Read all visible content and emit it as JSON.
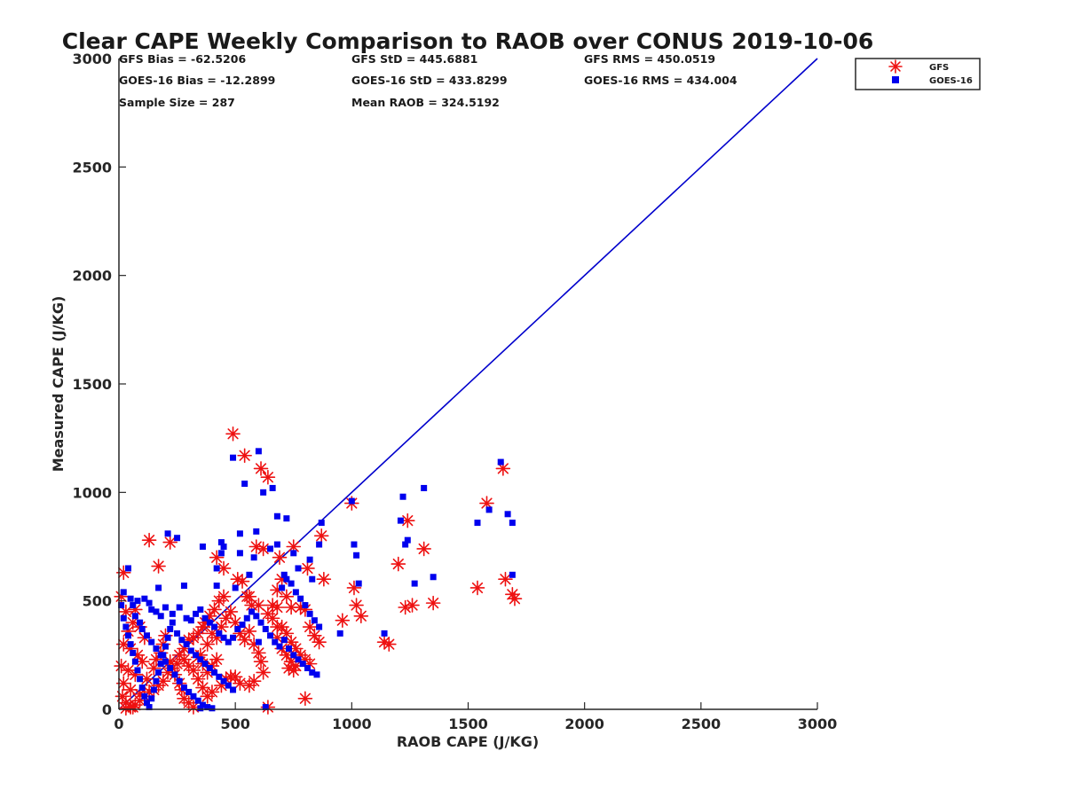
{
  "chart_data": {
    "type": "scatter",
    "title": "Clear CAPE Weekly Comparison to RAOB over CONUS 2019-10-06",
    "xlabel": "RAOB CAPE (J/KG)",
    "ylabel": "Measured CAPE (J/KG)",
    "xlim": [
      0,
      3000
    ],
    "ylim": [
      0,
      3000
    ],
    "xticks": [
      0,
      500,
      1000,
      1500,
      2000,
      2500,
      3000
    ],
    "yticks": [
      0,
      500,
      1000,
      1500,
      2000,
      2500,
      3000
    ],
    "grid": false,
    "legend_position": "top-right",
    "reference_line": {
      "name": "1:1 line",
      "color": "#0000cc",
      "x": [
        0,
        3000
      ],
      "y": [
        0,
        3000
      ]
    },
    "stats": [
      "GFS Bias = -62.5206",
      "GFS StD = 445.6881",
      "GFS RMS = 450.0519",
      "GOES-16 Bias = -12.2899",
      "GOES-16 StD = 433.8299",
      "GOES-16 RMS = 434.004",
      "Sample Size = 287",
      "Mean RAOB = 324.5192"
    ],
    "series": [
      {
        "name": "GFS",
        "marker": "asterisk",
        "color": "#ee1111",
        "points": [
          [
            490,
            1270
          ],
          [
            540,
            1170
          ],
          [
            610,
            1110
          ],
          [
            640,
            1070
          ],
          [
            1650,
            1110
          ],
          [
            1580,
            950
          ],
          [
            1000,
            950
          ],
          [
            130,
            780
          ],
          [
            220,
            770
          ],
          [
            590,
            750
          ],
          [
            620,
            740
          ],
          [
            870,
            800
          ],
          [
            750,
            750
          ],
          [
            1240,
            870
          ],
          [
            1310,
            740
          ],
          [
            1200,
            670
          ],
          [
            170,
            660
          ],
          [
            420,
            700
          ],
          [
            450,
            650
          ],
          [
            690,
            700
          ],
          [
            810,
            650
          ],
          [
            880,
            600
          ],
          [
            1660,
            600
          ],
          [
            1540,
            560
          ],
          [
            1690,
            530
          ],
          [
            1700,
            510
          ],
          [
            1010,
            560
          ],
          [
            1020,
            480
          ],
          [
            1230,
            470
          ],
          [
            1260,
            480
          ],
          [
            1350,
            490
          ],
          [
            1040,
            430
          ],
          [
            960,
            410
          ],
          [
            20,
            630
          ],
          [
            10,
            520
          ],
          [
            30,
            450
          ],
          [
            70,
            460
          ],
          [
            60,
            400
          ],
          [
            90,
            380
          ],
          [
            40,
            360
          ],
          [
            110,
            330
          ],
          [
            20,
            300
          ],
          [
            50,
            280
          ],
          [
            80,
            250
          ],
          [
            100,
            220
          ],
          [
            10,
            200
          ],
          [
            40,
            180
          ],
          [
            70,
            160
          ],
          [
            20,
            120
          ],
          [
            50,
            90
          ],
          [
            15,
            60
          ],
          [
            30,
            30
          ],
          [
            60,
            10
          ],
          [
            90,
            70
          ],
          [
            120,
            140
          ],
          [
            150,
            190
          ],
          [
            160,
            230
          ],
          [
            180,
            260
          ],
          [
            190,
            300
          ],
          [
            200,
            340
          ],
          [
            220,
            220
          ],
          [
            240,
            160
          ],
          [
            260,
            120
          ],
          [
            270,
            90
          ],
          [
            280,
            50
          ],
          [
            300,
            30
          ],
          [
            320,
            10
          ],
          [
            350,
            250
          ],
          [
            380,
            300
          ],
          [
            400,
            350
          ],
          [
            420,
            330
          ],
          [
            440,
            380
          ],
          [
            460,
            420
          ],
          [
            480,
            450
          ],
          [
            500,
            400
          ],
          [
            520,
            350
          ],
          [
            540,
            320
          ],
          [
            560,
            360
          ],
          [
            580,
            300
          ],
          [
            600,
            260
          ],
          [
            610,
            220
          ],
          [
            620,
            170
          ],
          [
            640,
            10
          ],
          [
            570,
            480
          ],
          [
            550,
            520
          ],
          [
            530,
            590
          ],
          [
            510,
            600
          ],
          [
            450,
            520
          ],
          [
            430,
            500
          ],
          [
            410,
            460
          ],
          [
            390,
            430
          ],
          [
            370,
            400
          ],
          [
            360,
            380
          ],
          [
            340,
            350
          ],
          [
            320,
            330
          ],
          [
            300,
            320
          ],
          [
            280,
            280
          ],
          [
            260,
            250
          ],
          [
            250,
            210
          ],
          [
            230,
            190
          ],
          [
            210,
            170
          ],
          [
            190,
            130
          ],
          [
            170,
            110
          ],
          [
            150,
            90
          ],
          [
            130,
            80
          ],
          [
            110,
            60
          ],
          [
            90,
            40
          ],
          [
            70,
            20
          ],
          [
            50,
            10
          ],
          [
            30,
            5
          ],
          [
            680,
            330
          ],
          [
            700,
            380
          ],
          [
            720,
            350
          ],
          [
            740,
            310
          ],
          [
            760,
            280
          ],
          [
            780,
            250
          ],
          [
            800,
            230
          ],
          [
            820,
            210
          ],
          [
            700,
            280
          ],
          [
            720,
            250
          ],
          [
            740,
            220
          ],
          [
            760,
            200
          ],
          [
            730,
            190
          ],
          [
            750,
            180
          ],
          [
            780,
            470
          ],
          [
            800,
            460
          ],
          [
            820,
            380
          ],
          [
            840,
            340
          ],
          [
            860,
            310
          ],
          [
            680,
            470
          ],
          [
            720,
            520
          ],
          [
            740,
            470
          ],
          [
            660,
            420
          ],
          [
            680,
            380
          ],
          [
            800,
            50
          ],
          [
            1140,
            310
          ],
          [
            1160,
            300
          ],
          [
            500,
            150
          ],
          [
            520,
            120
          ],
          [
            460,
            140
          ],
          [
            440,
            110
          ],
          [
            400,
            80
          ],
          [
            380,
            60
          ],
          [
            360,
            100
          ],
          [
            340,
            140
          ],
          [
            320,
            180
          ],
          [
            300,
            200
          ],
          [
            280,
            230
          ],
          [
            560,
            110
          ],
          [
            580,
            130
          ],
          [
            420,
            230
          ],
          [
            400,
            200
          ],
          [
            380,
            170
          ],
          [
            360,
            210
          ],
          [
            340,
            240
          ],
          [
            560,
            520
          ],
          [
            600,
            480
          ],
          [
            640,
            440
          ],
          [
            660,
            480
          ],
          [
            680,
            550
          ],
          [
            700,
            600
          ],
          [
            480,
            150
          ]
        ]
      },
      {
        "name": "GOES-16",
        "marker": "square",
        "color": "#0000ee",
        "points": [
          [
            600,
            1190
          ],
          [
            490,
            1160
          ],
          [
            660,
            1020
          ],
          [
            540,
            1040
          ],
          [
            620,
            1000
          ],
          [
            1640,
            1140
          ],
          [
            1000,
            960
          ],
          [
            1220,
            980
          ],
          [
            1310,
            1020
          ],
          [
            1590,
            920
          ],
          [
            1670,
            900
          ],
          [
            1690,
            860
          ],
          [
            1540,
            860
          ],
          [
            1210,
            870
          ],
          [
            870,
            860
          ],
          [
            680,
            890
          ],
          [
            720,
            880
          ],
          [
            210,
            810
          ],
          [
            250,
            790
          ],
          [
            520,
            810
          ],
          [
            590,
            820
          ],
          [
            440,
            770
          ],
          [
            450,
            750
          ],
          [
            360,
            750
          ],
          [
            1240,
            780
          ],
          [
            1010,
            760
          ],
          [
            1020,
            710
          ],
          [
            860,
            760
          ],
          [
            1230,
            760
          ],
          [
            440,
            720
          ],
          [
            520,
            720
          ],
          [
            580,
            700
          ],
          [
            420,
            650
          ],
          [
            560,
            620
          ],
          [
            710,
            620
          ],
          [
            650,
            740
          ],
          [
            750,
            720
          ],
          [
            680,
            760
          ],
          [
            820,
            690
          ],
          [
            770,
            650
          ],
          [
            1690,
            620
          ],
          [
            1350,
            610
          ],
          [
            1270,
            580
          ],
          [
            1030,
            580
          ],
          [
            170,
            560
          ],
          [
            280,
            570
          ],
          [
            420,
            570
          ],
          [
            500,
            560
          ],
          [
            740,
            580
          ],
          [
            830,
            600
          ],
          [
            40,
            650
          ],
          [
            20,
            540
          ],
          [
            50,
            510
          ],
          [
            80,
            500
          ],
          [
            110,
            510
          ],
          [
            130,
            490
          ],
          [
            140,
            460
          ],
          [
            160,
            450
          ],
          [
            180,
            430
          ],
          [
            200,
            470
          ],
          [
            230,
            440
          ],
          [
            260,
            470
          ],
          [
            290,
            420
          ],
          [
            310,
            410
          ],
          [
            330,
            440
          ],
          [
            350,
            460
          ],
          [
            370,
            420
          ],
          [
            390,
            400
          ],
          [
            410,
            380
          ],
          [
            430,
            350
          ],
          [
            450,
            330
          ],
          [
            470,
            310
          ],
          [
            490,
            330
          ],
          [
            510,
            370
          ],
          [
            530,
            390
          ],
          [
            550,
            420
          ],
          [
            570,
            450
          ],
          [
            590,
            430
          ],
          [
            610,
            400
          ],
          [
            630,
            370
          ],
          [
            650,
            340
          ],
          [
            670,
            310
          ],
          [
            690,
            290
          ],
          [
            710,
            320
          ],
          [
            730,
            280
          ],
          [
            750,
            250
          ],
          [
            770,
            230
          ],
          [
            790,
            210
          ],
          [
            810,
            190
          ],
          [
            830,
            170
          ],
          [
            850,
            160
          ],
          [
            950,
            350
          ],
          [
            1140,
            350
          ],
          [
            60,
            480
          ],
          [
            70,
            430
          ],
          [
            90,
            400
          ],
          [
            100,
            370
          ],
          [
            120,
            340
          ],
          [
            140,
            310
          ],
          [
            160,
            280
          ],
          [
            180,
            250
          ],
          [
            200,
            220
          ],
          [
            220,
            190
          ],
          [
            240,
            160
          ],
          [
            260,
            130
          ],
          [
            280,
            100
          ],
          [
            300,
            80
          ],
          [
            320,
            60
          ],
          [
            340,
            40
          ],
          [
            360,
            20
          ],
          [
            380,
            10
          ],
          [
            10,
            480
          ],
          [
            20,
            420
          ],
          [
            30,
            380
          ],
          [
            40,
            340
          ],
          [
            50,
            300
          ],
          [
            60,
            260
          ],
          [
            70,
            220
          ],
          [
            80,
            180
          ],
          [
            90,
            140
          ],
          [
            100,
            100
          ],
          [
            110,
            60
          ],
          [
            120,
            30
          ],
          [
            130,
            10
          ],
          [
            140,
            50
          ],
          [
            150,
            90
          ],
          [
            160,
            130
          ],
          [
            170,
            170
          ],
          [
            180,
            210
          ],
          [
            190,
            250
          ],
          [
            200,
            290
          ],
          [
            210,
            330
          ],
          [
            220,
            370
          ],
          [
            230,
            400
          ],
          [
            250,
            350
          ],
          [
            270,
            320
          ],
          [
            290,
            300
          ],
          [
            310,
            270
          ],
          [
            330,
            250
          ],
          [
            350,
            230
          ],
          [
            370,
            210
          ],
          [
            390,
            190
          ],
          [
            410,
            170
          ],
          [
            430,
            150
          ],
          [
            450,
            130
          ],
          [
            470,
            110
          ],
          [
            490,
            90
          ],
          [
            600,
            310
          ],
          [
            700,
            560
          ],
          [
            720,
            600
          ],
          [
            760,
            540
          ],
          [
            780,
            510
          ],
          [
            800,
            480
          ],
          [
            820,
            440
          ],
          [
            840,
            410
          ],
          [
            860,
            380
          ],
          [
            400,
            5
          ],
          [
            630,
            10
          ],
          [
            350,
            5
          ]
        ]
      }
    ]
  }
}
